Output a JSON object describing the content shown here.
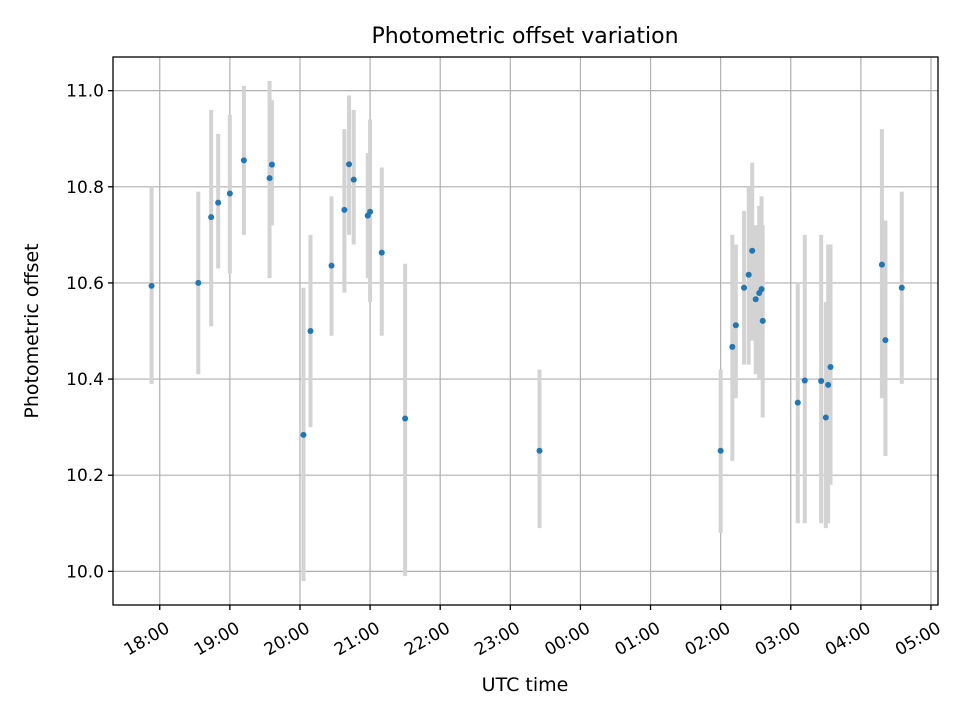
{
  "chart_data": {
    "type": "scatter",
    "title": "Photometric offset variation",
    "xlabel": "UTC time",
    "ylabel": "Photometric offset",
    "x_range": [
      "17:20",
      "05:06"
    ],
    "x_ticks": [
      "18:00",
      "19:00",
      "20:00",
      "21:00",
      "22:00",
      "23:00",
      "00:00",
      "01:00",
      "02:00",
      "03:00",
      "04:00",
      "05:00"
    ],
    "ylim": [
      9.93,
      11.07
    ],
    "y_ticks": [
      10.0,
      10.2,
      10.4,
      10.6,
      10.8,
      11.0
    ],
    "y_tick_labels": [
      "10.0",
      "10.2",
      "10.4",
      "10.6",
      "10.8",
      "11.0"
    ],
    "grid": true,
    "colors": {
      "marker": "#1f77b4",
      "errorbar": "#d3d3d3"
    },
    "points": [
      {
        "t": "17:53",
        "y": 10.594,
        "lo": 10.39,
        "hi": 10.8
      },
      {
        "t": "18:33",
        "y": 10.6,
        "lo": 10.41,
        "hi": 10.79
      },
      {
        "t": "18:44",
        "y": 10.737,
        "lo": 10.51,
        "hi": 10.96
      },
      {
        "t": "18:50",
        "y": 10.767,
        "lo": 10.63,
        "hi": 10.91
      },
      {
        "t": "19:00",
        "y": 10.786,
        "lo": 10.62,
        "hi": 10.95
      },
      {
        "t": "19:12",
        "y": 10.855,
        "lo": 10.7,
        "hi": 11.01
      },
      {
        "t": "19:34",
        "y": 10.818,
        "lo": 10.61,
        "hi": 11.02
      },
      {
        "t": "19:36",
        "y": 10.846,
        "lo": 10.72,
        "hi": 10.98
      },
      {
        "t": "20:03",
        "y": 10.284,
        "lo": 9.98,
        "hi": 10.59
      },
      {
        "t": "20:09",
        "y": 10.5,
        "lo": 10.3,
        "hi": 10.7
      },
      {
        "t": "20:27",
        "y": 10.636,
        "lo": 10.49,
        "hi": 10.78
      },
      {
        "t": "20:38",
        "y": 10.752,
        "lo": 10.58,
        "hi": 10.92
      },
      {
        "t": "20:42",
        "y": 10.847,
        "lo": 10.7,
        "hi": 10.99
      },
      {
        "t": "20:46",
        "y": 10.815,
        "lo": 10.68,
        "hi": 10.96
      },
      {
        "t": "20:58",
        "y": 10.74,
        "lo": 10.61,
        "hi": 10.87
      },
      {
        "t": "21:00",
        "y": 10.748,
        "lo": 10.56,
        "hi": 10.94
      },
      {
        "t": "21:10",
        "y": 10.663,
        "lo": 10.49,
        "hi": 10.84
      },
      {
        "t": "21:30",
        "y": 10.318,
        "lo": 9.99,
        "hi": 10.64
      },
      {
        "t": "23:25",
        "y": 10.251,
        "lo": 10.09,
        "hi": 10.42
      },
      {
        "t": "02:00",
        "y": 10.251,
        "lo": 10.08,
        "hi": 10.42
      },
      {
        "t": "02:10",
        "y": 10.467,
        "lo": 10.23,
        "hi": 10.7
      },
      {
        "t": "02:13",
        "y": 10.512,
        "lo": 10.36,
        "hi": 10.68
      },
      {
        "t": "02:20",
        "y": 10.59,
        "lo": 10.43,
        "hi": 10.75
      },
      {
        "t": "02:24",
        "y": 10.617,
        "lo": 10.43,
        "hi": 10.8
      },
      {
        "t": "02:27",
        "y": 10.667,
        "lo": 10.48,
        "hi": 10.85
      },
      {
        "t": "02:30",
        "y": 10.566,
        "lo": 10.41,
        "hi": 10.72
      },
      {
        "t": "02:33",
        "y": 10.579,
        "lo": 10.4,
        "hi": 10.76
      },
      {
        "t": "02:35",
        "y": 10.587,
        "lo": 10.4,
        "hi": 10.78
      },
      {
        "t": "02:36",
        "y": 10.521,
        "lo": 10.32,
        "hi": 10.72
      },
      {
        "t": "03:06",
        "y": 10.351,
        "lo": 10.1,
        "hi": 10.6
      },
      {
        "t": "03:12",
        "y": 10.397,
        "lo": 10.1,
        "hi": 10.7
      },
      {
        "t": "03:26",
        "y": 10.396,
        "lo": 10.1,
        "hi": 10.7
      },
      {
        "t": "03:30",
        "y": 10.32,
        "lo": 10.09,
        "hi": 10.56
      },
      {
        "t": "03:32",
        "y": 10.388,
        "lo": 10.1,
        "hi": 10.68
      },
      {
        "t": "03:34",
        "y": 10.425,
        "lo": 10.18,
        "hi": 10.68
      },
      {
        "t": "04:18",
        "y": 10.638,
        "lo": 10.36,
        "hi": 10.92
      },
      {
        "t": "04:21",
        "y": 10.481,
        "lo": 10.24,
        "hi": 10.73
      },
      {
        "t": "04:35",
        "y": 10.59,
        "lo": 10.39,
        "hi": 10.79
      }
    ]
  }
}
